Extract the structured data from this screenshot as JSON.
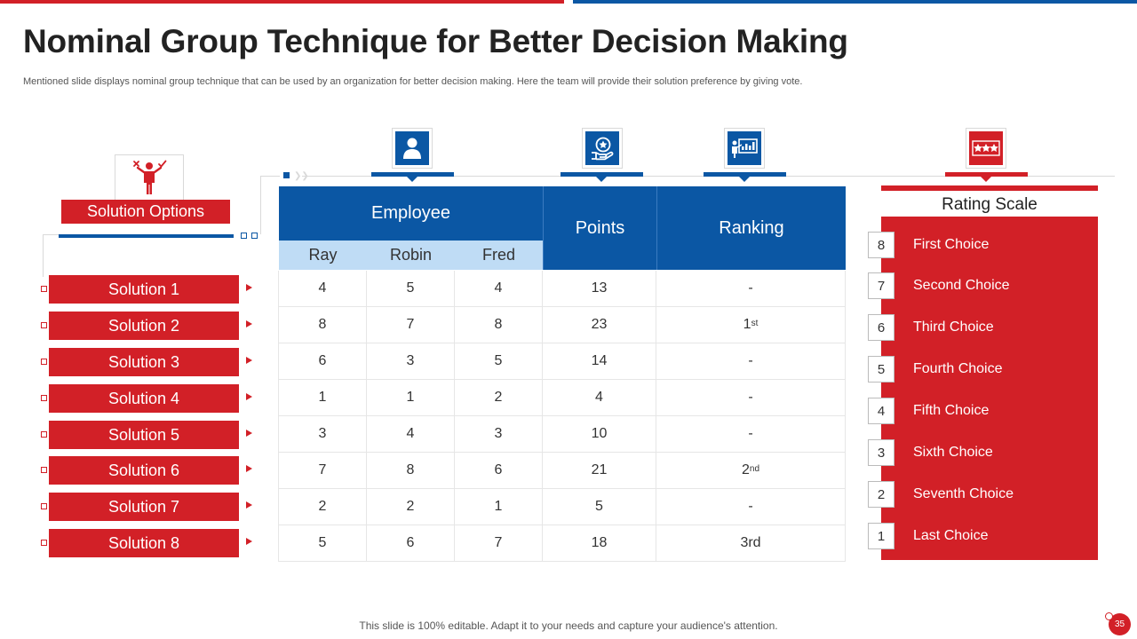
{
  "slide": {
    "title": "Nominal Group Technique for Better Decision Making",
    "subtitle": "Mentioned slide displays nominal group technique that can be used by  an organization for better decision making. Here the team will provide their solution preference by giving vote.",
    "footer": "This slide is 100% editable. Adapt it to your needs and capture your audience's attention.",
    "page_number": "35"
  },
  "solutions": {
    "header": "Solution Options",
    "items": [
      "Solution 1",
      "Solution 2",
      "Solution 3",
      "Solution 4",
      "Solution 5",
      "Solution 6",
      "Solution 7",
      "Solution 8"
    ]
  },
  "table": {
    "employee_header": "Employee",
    "points_header": "Points",
    "ranking_header": "Ranking",
    "employees": [
      "Ray",
      "Robin",
      "Fred"
    ],
    "rows": [
      {
        "ray": "4",
        "robin": "5",
        "fred": "4",
        "points": "13",
        "rank": "-",
        "rank_sup": ""
      },
      {
        "ray": "8",
        "robin": "7",
        "fred": "8",
        "points": "23",
        "rank": "1",
        "rank_sup": "st"
      },
      {
        "ray": "6",
        "robin": "3",
        "fred": "5",
        "points": "14",
        "rank": "-",
        "rank_sup": ""
      },
      {
        "ray": "1",
        "robin": "1",
        "fred": "2",
        "points": "4",
        "rank": "-",
        "rank_sup": ""
      },
      {
        "ray": "3",
        "robin": "4",
        "fred": "3",
        "points": "10",
        "rank": "-",
        "rank_sup": ""
      },
      {
        "ray": "7",
        "robin": "8",
        "fred": "6",
        "points": "21",
        "rank": "2",
        "rank_sup": "nd"
      },
      {
        "ray": "2",
        "robin": "2",
        "fred": "1",
        "points": "5",
        "rank": "-",
        "rank_sup": ""
      },
      {
        "ray": "5",
        "robin": "6",
        "fred": "7",
        "points": "18",
        "rank": "3rd",
        "rank_sup": ""
      }
    ]
  },
  "rating_scale": {
    "title": "Rating Scale",
    "items": [
      {
        "num": "8",
        "label": "First Choice"
      },
      {
        "num": "7",
        "label": "Second Choice"
      },
      {
        "num": "6",
        "label": "Third Choice"
      },
      {
        "num": "5",
        "label": "Fourth Choice"
      },
      {
        "num": "4",
        "label": "Fifth Choice"
      },
      {
        "num": "3",
        "label": "Sixth Choice"
      },
      {
        "num": "2",
        "label": "Seventh Choice"
      },
      {
        "num": "1",
        "label": "Last Choice"
      }
    ]
  },
  "icons": {
    "solutions": "person-decision-icon",
    "employee": "user-icon",
    "points": "hand-star-icon",
    "ranking": "presentation-chart-icon",
    "rating": "three-stars-icon"
  },
  "colors": {
    "red": "#d22027",
    "blue": "#0b57a4",
    "light_blue": "#bfdcf5"
  }
}
